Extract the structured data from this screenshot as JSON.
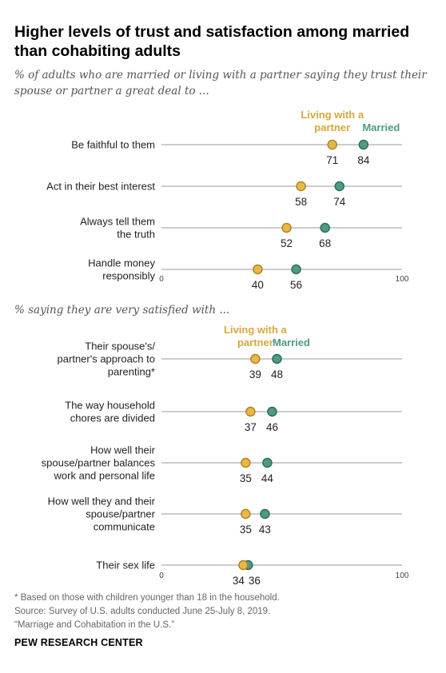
{
  "title": "Higher levels of trust and satisfaction among married than cohabiting adults",
  "colors": {
    "married": "#4e9a86",
    "cohabiting": "#e8b84a",
    "axis": "#999999"
  },
  "chart_data": [
    {
      "type": "dot-plot",
      "subtitle": "% of adults who are married or living with a partner saying they trust their spouse or partner a great deal to ...",
      "xlim": [
        0,
        100
      ],
      "ticks": [
        "0",
        "100"
      ],
      "legend": {
        "cohabiting": [
          "Living with a",
          "partner"
        ],
        "married": "Married"
      },
      "series_keys": [
        "cohabiting",
        "married"
      ],
      "rows": [
        {
          "label": [
            "Be faithful to them"
          ],
          "cohabiting": 71,
          "married": 84
        },
        {
          "label": [
            "Act in their best interest"
          ],
          "cohabiting": 58,
          "married": 74
        },
        {
          "label": [
            "Always tell them",
            "the truth"
          ],
          "cohabiting": 52,
          "married": 68
        },
        {
          "label": [
            "Handle money",
            "responsibly"
          ],
          "cohabiting": 40,
          "married": 56
        }
      ]
    },
    {
      "type": "dot-plot",
      "subtitle": "% saying they are very satisfied with ...",
      "xlim": [
        0,
        100
      ],
      "ticks": [
        "0",
        "100"
      ],
      "legend": {
        "cohabiting": [
          "Living with a",
          "partner"
        ],
        "married": "Married"
      },
      "series_keys": [
        "cohabiting",
        "married"
      ],
      "rows": [
        {
          "label": [
            "Their spouse's/",
            "partner's approach to",
            "parenting*"
          ],
          "cohabiting": 39,
          "married": 48
        },
        {
          "label": [
            "The way household",
            "chores are divided"
          ],
          "cohabiting": 37,
          "married": 46
        },
        {
          "label": [
            "How well their",
            "spouse/partner balances",
            "work and personal life"
          ],
          "cohabiting": 35,
          "married": 44
        },
        {
          "label": [
            "How well they and their",
            "spouse/partner",
            "communicate"
          ],
          "cohabiting": 35,
          "married": 43
        },
        {
          "label": [
            "Their sex life"
          ],
          "cohabiting": 34,
          "married": 36
        }
      ]
    }
  ],
  "footnotes": [
    "* Based on those with children younger than 18 in the household.",
    "Source: Survey of U.S. adults conducted June 25-July 8, 2019.",
    "“Marriage and Cohabitation in the U.S.”"
  ],
  "brand": "PEW RESEARCH CENTER"
}
